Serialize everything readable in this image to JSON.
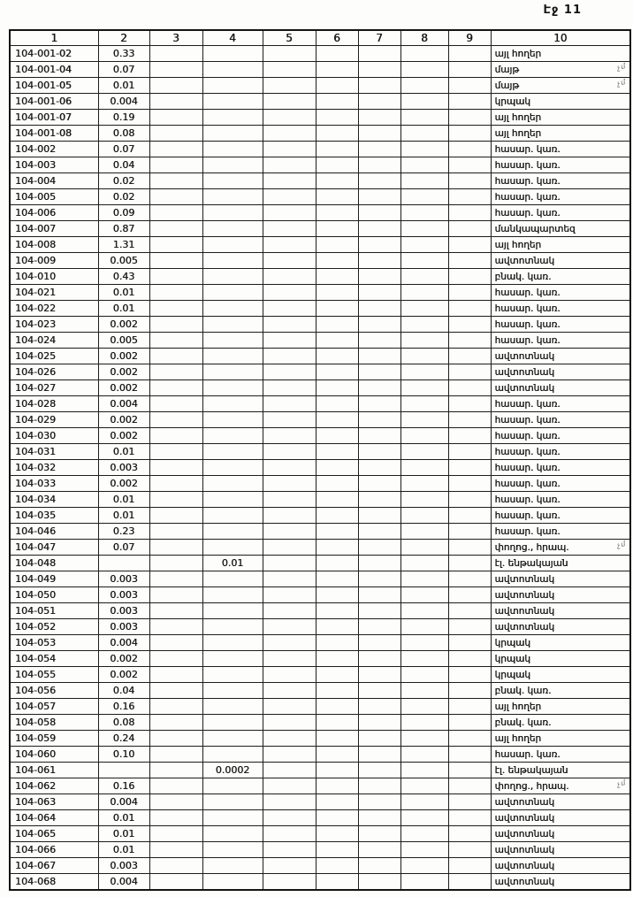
{
  "page": {
    "label": "Էջ 11"
  },
  "table": {
    "headers": [
      "1",
      "2",
      "3",
      "4",
      "5",
      "6",
      "7",
      "8",
      "9",
      "10"
    ],
    "rows": [
      {
        "code": "104-001-02",
        "area": "0.33",
        "c4": "",
        "use": "այլ հողեր"
      },
      {
        "code": "104-001-04",
        "area": "0.07",
        "c4": "",
        "use": "մայթ"
      },
      {
        "code": "104-001-05",
        "area": "0.01",
        "c4": "",
        "use": "մայթ"
      },
      {
        "code": "104-001-06",
        "area": "0.004",
        "c4": "",
        "use": "կրպակ"
      },
      {
        "code": "104-001-07",
        "area": "0.19",
        "c4": "",
        "use": "այլ հողեր"
      },
      {
        "code": "104-001-08",
        "area": "0.08",
        "c4": "",
        "use": "այլ հողեր"
      },
      {
        "code": "104-002",
        "area": "0.07",
        "c4": "",
        "use": "հասար. կառ."
      },
      {
        "code": "104-003",
        "area": "0.04",
        "c4": "",
        "use": "հասար. կառ."
      },
      {
        "code": "104-004",
        "area": "0.02",
        "c4": "",
        "use": "հասար. կառ."
      },
      {
        "code": "104-005",
        "area": "0.02",
        "c4": "",
        "use": "հասար. կառ."
      },
      {
        "code": "104-006",
        "area": "0.09",
        "c4": "",
        "use": "հասար. կառ."
      },
      {
        "code": "104-007",
        "area": "0.87",
        "c4": "",
        "use": "մանկապարտեզ"
      },
      {
        "code": "104-008",
        "area": "1.31",
        "c4": "",
        "use": "այլ հողեր"
      },
      {
        "code": "104-009",
        "area": "0.005",
        "c4": "",
        "use": "ավտոտնակ"
      },
      {
        "code": "104-010",
        "area": "0.43",
        "c4": "",
        "use": "բնակ. կառ."
      },
      {
        "code": "104-021",
        "area": "0.01",
        "c4": "",
        "use": "հասար. կառ."
      },
      {
        "code": "104-022",
        "area": "0.01",
        "c4": "",
        "use": "հասար. կառ."
      },
      {
        "code": "104-023",
        "area": "0.002",
        "c4": "",
        "use": "հասար. կառ."
      },
      {
        "code": "104-024",
        "area": "0.005",
        "c4": "",
        "use": "հասար. կառ."
      },
      {
        "code": "104-025",
        "area": "0.002",
        "c4": "",
        "use": "ավտոտնակ"
      },
      {
        "code": "104-026",
        "area": "0.002",
        "c4": "",
        "use": "ավտոտնակ"
      },
      {
        "code": "104-027",
        "area": "0.002",
        "c4": "",
        "use": "ավտոտնակ"
      },
      {
        "code": "104-028",
        "area": "0.004",
        "c4": "",
        "use": "հասար. կառ."
      },
      {
        "code": "104-029",
        "area": "0.002",
        "c4": "",
        "use": "հասար. կառ."
      },
      {
        "code": "104-030",
        "area": "0.002",
        "c4": "",
        "use": "հասար. կառ."
      },
      {
        "code": "104-031",
        "area": "0.01",
        "c4": "",
        "use": "հասար. կառ."
      },
      {
        "code": "104-032",
        "area": "0.003",
        "c4": "",
        "use": "հասար. կառ."
      },
      {
        "code": "104-033",
        "area": "0.002",
        "c4": "",
        "use": "հասար. կառ."
      },
      {
        "code": "104-034",
        "area": "0.01",
        "c4": "",
        "use": "հասար. կառ."
      },
      {
        "code": "104-035",
        "area": "0.01",
        "c4": "",
        "use": "հասար. կառ."
      },
      {
        "code": "104-046",
        "area": "0.23",
        "c4": "",
        "use": "հասար. կառ."
      },
      {
        "code": "104-047",
        "area": "0.07",
        "c4": "",
        "use": "փողոց., հրապ."
      },
      {
        "code": "104-048",
        "area": "",
        "c4": "0.01",
        "use": "էլ. ենթակայան"
      },
      {
        "code": "104-049",
        "area": "0.003",
        "c4": "",
        "use": "ավտոտնակ"
      },
      {
        "code": "104-050",
        "area": "0.003",
        "c4": "",
        "use": "ավտոտնակ"
      },
      {
        "code": "104-051",
        "area": "0.003",
        "c4": "",
        "use": "ավտոտնակ"
      },
      {
        "code": "104-052",
        "area": "0.003",
        "c4": "",
        "use": "ավտոտնակ"
      },
      {
        "code": "104-053",
        "area": "0.004",
        "c4": "",
        "use": "կրպակ"
      },
      {
        "code": "104-054",
        "area": "0.002",
        "c4": "",
        "use": "կրպակ"
      },
      {
        "code": "104-055",
        "area": "0.002",
        "c4": "",
        "use": "կրպակ"
      },
      {
        "code": "104-056",
        "area": "0.04",
        "c4": "",
        "use": "բնակ. կառ."
      },
      {
        "code": "104-057",
        "area": "0.16",
        "c4": "",
        "use": "այլ հողեր"
      },
      {
        "code": "104-058",
        "area": "0.08",
        "c4": "",
        "use": "բնակ. կառ."
      },
      {
        "code": "104-059",
        "area": "0.24",
        "c4": "",
        "use": "այլ հողեր"
      },
      {
        "code": "104-060",
        "area": "0.10",
        "c4": "",
        "use": "հասար. կառ."
      },
      {
        "code": "104-061",
        "area": "",
        "c4": "0.0002",
        "use": "էլ. ենթակայան"
      },
      {
        "code": "104-062",
        "area": "0.16",
        "c4": "",
        "use": "փողոց., հրապ."
      },
      {
        "code": "104-063",
        "area": "0.004",
        "c4": "",
        "use": "ավտոտնակ"
      },
      {
        "code": "104-064",
        "area": "0.01",
        "c4": "",
        "use": "ավտոտնակ"
      },
      {
        "code": "104-065",
        "area": "0.01",
        "c4": "",
        "use": "ավտոտնակ"
      },
      {
        "code": "104-066",
        "area": "0.01",
        "c4": "",
        "use": "ավտոտնակ"
      },
      {
        "code": "104-067",
        "area": "0.003",
        "c4": "",
        "use": "ավտոտնակ"
      },
      {
        "code": "104-068",
        "area": "0.004",
        "c4": "",
        "use": "ավտոտնակ"
      }
    ],
    "margin_marks": [
      {
        "row": "104-001-04",
        "text": "չմ"
      },
      {
        "row": "104-001-05",
        "text": "չմ"
      },
      {
        "row": "104-047",
        "text": "չմ"
      },
      {
        "row": "104-062",
        "text": "չմ"
      }
    ]
  }
}
